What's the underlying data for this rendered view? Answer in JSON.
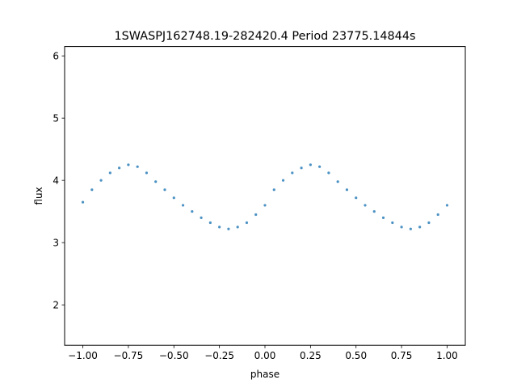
{
  "chart_data": {
    "type": "scatter",
    "title": "1SWASPJ162748.19-282420.4 Period 23775.14844s",
    "xlabel": "phase",
    "ylabel": "flux",
    "xlim": [
      -1.1,
      1.1
    ],
    "ylim": [
      1.35,
      6.15
    ],
    "xticks": [
      -1.0,
      -0.75,
      -0.5,
      -0.25,
      0.0,
      0.25,
      0.5,
      0.75,
      1.0
    ],
    "xtick_labels": [
      "−1.00",
      "−0.75",
      "−0.50",
      "−0.25",
      "0.00",
      "0.25",
      "0.50",
      "0.75",
      "1.00"
    ],
    "yticks": [
      2,
      3,
      4,
      5,
      6
    ],
    "ytick_labels": [
      "2",
      "3",
      "4",
      "5",
      "6"
    ],
    "grid": false,
    "legend": "none",
    "marker_color": "#1f77b4",
    "series": [
      {
        "x": [
          -1.0,
          -0.95,
          -0.9,
          -0.85,
          -0.8,
          -0.75,
          -0.7,
          -0.65,
          -0.6,
          -0.55,
          -0.5,
          -0.45,
          -0.4,
          -0.35,
          -0.3,
          -0.25,
          -0.2,
          -0.15,
          -0.1,
          -0.05,
          0.0,
          0.05,
          0.1,
          0.15,
          0.2,
          0.25,
          0.3,
          0.35,
          0.4,
          0.45,
          0.5,
          0.55,
          0.6,
          0.65,
          0.7,
          0.75,
          0.8,
          0.85,
          0.9,
          0.95,
          1.0
        ],
        "y": [
          3.65,
          3.85,
          4.0,
          4.12,
          4.2,
          4.25,
          4.22,
          4.12,
          3.98,
          3.85,
          3.72,
          3.6,
          3.5,
          3.4,
          3.32,
          3.25,
          3.22,
          3.25,
          3.32,
          3.45,
          3.6,
          3.85,
          4.0,
          4.12,
          4.2,
          4.25,
          4.22,
          4.12,
          3.98,
          3.85,
          3.72,
          3.6,
          3.5,
          3.4,
          3.32,
          3.25,
          3.22,
          3.25,
          3.32,
          3.45,
          3.6
        ]
      }
    ]
  }
}
